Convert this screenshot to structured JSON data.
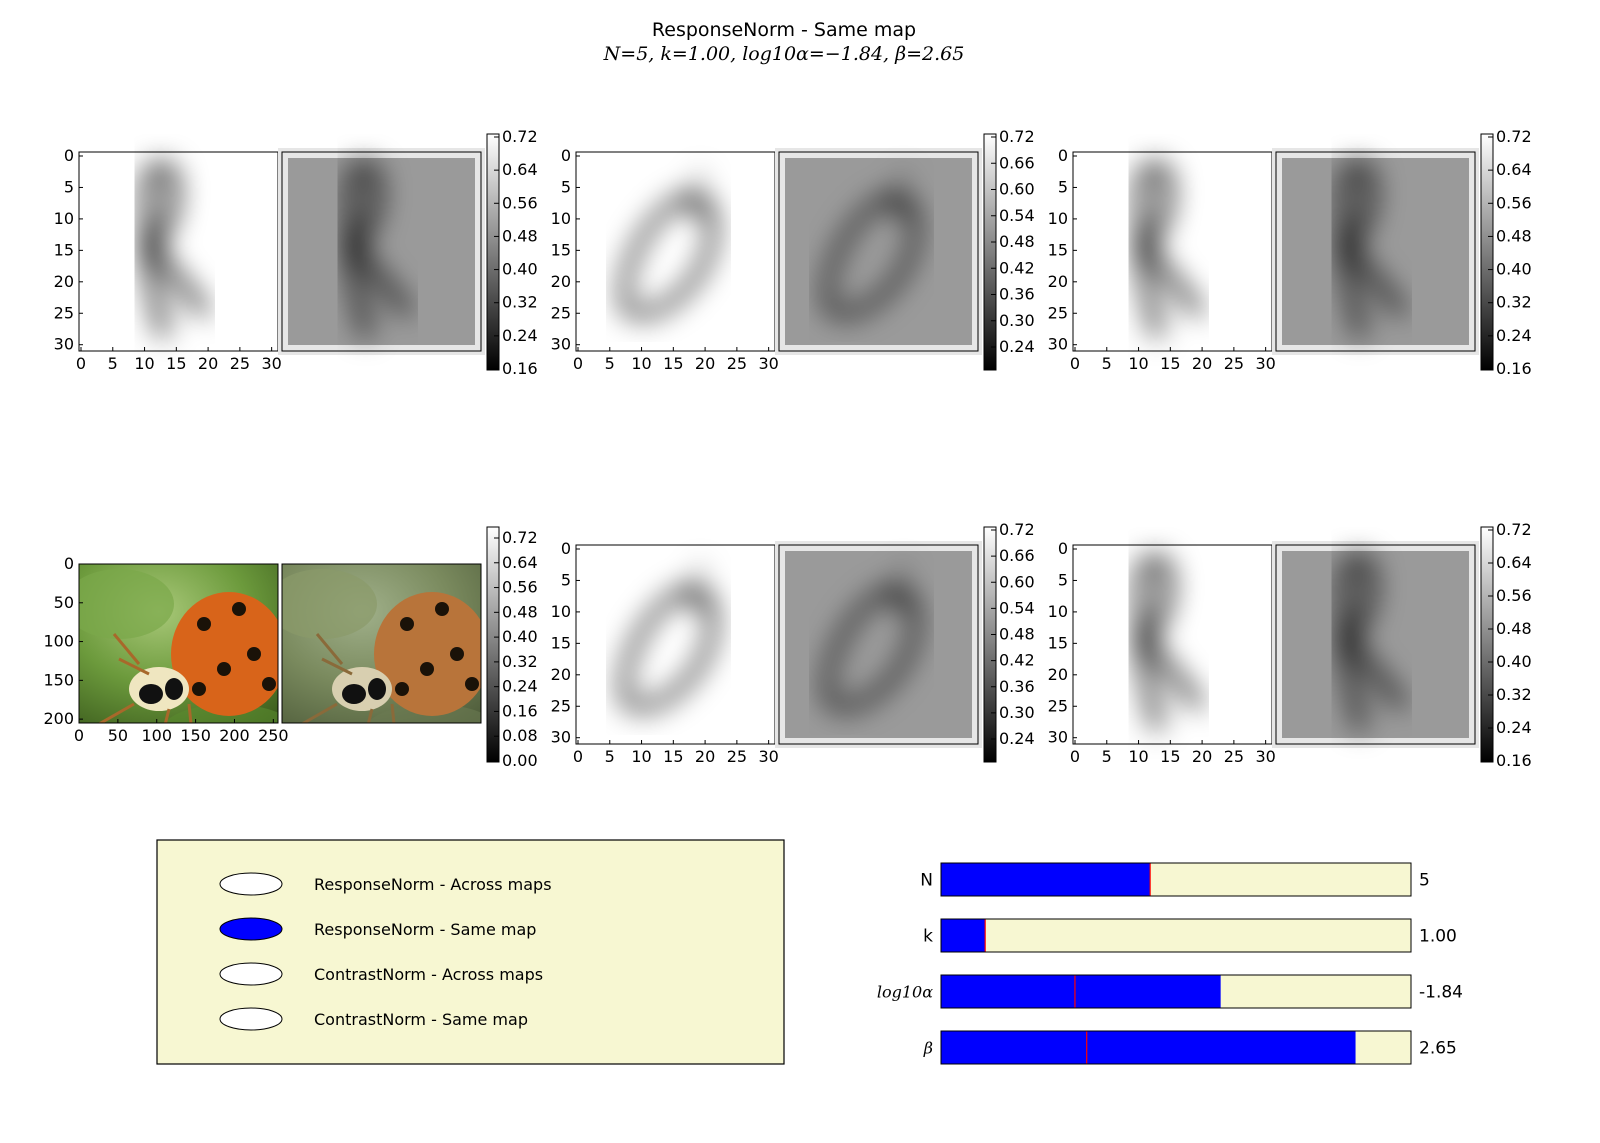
{
  "figure": {
    "title": "ResponseNorm - Same map",
    "subtitle": "N=5,  k=1.00,  log10α=−1.84,  β=2.65"
  },
  "panels": [
    {
      "id": "r1c1",
      "image": "digit-R",
      "ticks_x": [
        "0",
        "5",
        "10",
        "15",
        "20",
        "25",
        "30"
      ],
      "ticks_y": [
        "0",
        "5",
        "10",
        "15",
        "20",
        "25",
        "30"
      ],
      "colorbar": [
        "0.72",
        "0.64",
        "0.56",
        "0.48",
        "0.40",
        "0.32",
        "0.24",
        "0.16"
      ]
    },
    {
      "id": "r1c2",
      "image": "digit-0",
      "ticks_x": [
        "0",
        "5",
        "10",
        "15",
        "20",
        "25",
        "30"
      ],
      "ticks_y": [
        "0",
        "5",
        "10",
        "15",
        "20",
        "25",
        "30"
      ],
      "colorbar": [
        "0.72",
        "0.66",
        "0.60",
        "0.54",
        "0.48",
        "0.42",
        "0.36",
        "0.30",
        "0.24"
      ]
    },
    {
      "id": "r1c3",
      "image": "digit-R",
      "ticks_x": [
        "0",
        "5",
        "10",
        "15",
        "20",
        "25",
        "30"
      ],
      "ticks_y": [
        "0",
        "5",
        "10",
        "15",
        "20",
        "25",
        "30"
      ],
      "colorbar": [
        "0.72",
        "0.64",
        "0.56",
        "0.48",
        "0.40",
        "0.32",
        "0.24",
        "0.16"
      ]
    },
    {
      "id": "r2c1",
      "image": "ladybug",
      "ticks_x": [
        "0",
        "50",
        "100",
        "150",
        "200",
        "250"
      ],
      "ticks_y": [
        "0",
        "50",
        "100",
        "150",
        "200"
      ],
      "colorbar": [
        "0.72",
        "0.64",
        "0.56",
        "0.48",
        "0.40",
        "0.32",
        "0.24",
        "0.16",
        "0.08",
        "0.00"
      ]
    },
    {
      "id": "r2c2",
      "image": "digit-0",
      "ticks_x": [
        "0",
        "5",
        "10",
        "15",
        "20",
        "25",
        "30"
      ],
      "ticks_y": [
        "0",
        "5",
        "10",
        "15",
        "20",
        "25",
        "30"
      ],
      "colorbar": [
        "0.72",
        "0.66",
        "0.60",
        "0.54",
        "0.48",
        "0.42",
        "0.36",
        "0.30",
        "0.24"
      ]
    },
    {
      "id": "r2c3",
      "image": "digit-R",
      "ticks_x": [
        "0",
        "5",
        "10",
        "15",
        "20",
        "25",
        "30"
      ],
      "ticks_y": [
        "0",
        "5",
        "10",
        "15",
        "20",
        "25",
        "30"
      ],
      "colorbar": [
        "0.72",
        "0.64",
        "0.56",
        "0.48",
        "0.40",
        "0.32",
        "0.24",
        "0.16"
      ]
    }
  ],
  "legend": {
    "items": [
      {
        "label": "ResponseNorm - Across maps",
        "selected": false
      },
      {
        "label": "ResponseNorm - Same map",
        "selected": true
      },
      {
        "label": "ContrastNorm - Across maps",
        "selected": false
      },
      {
        "label": "ContrastNorm - Same map",
        "selected": false
      }
    ]
  },
  "sliders": [
    {
      "name": "N",
      "label": "N",
      "value_text": "5",
      "fill": 0.445,
      "marker": 0.445
    },
    {
      "name": "k",
      "label": "k",
      "value_text": "1.00",
      "fill": 0.094,
      "marker": 0.094
    },
    {
      "name": "log-alpha",
      "label": "log10α",
      "value_text": "-1.84",
      "fill": 0.595,
      "marker": 0.285
    },
    {
      "name": "beta",
      "label": "β",
      "value_text": "2.65",
      "fill": 0.882,
      "marker": 0.31
    }
  ],
  "colors": {
    "accent": "#0000ff",
    "panel_bg": "#f7f7d2",
    "marker": "#ff0000",
    "gray_bg": "#999999"
  }
}
